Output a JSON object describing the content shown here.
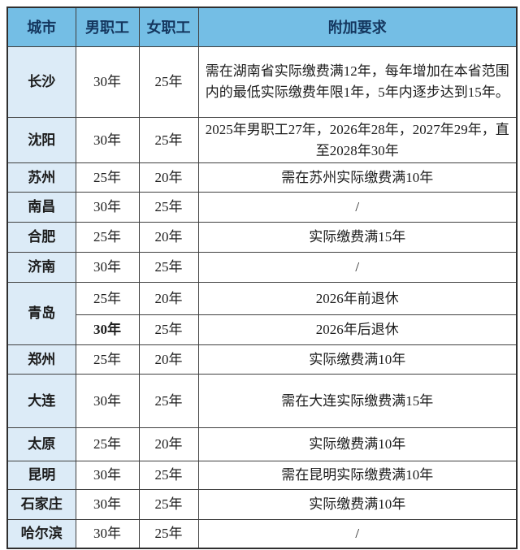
{
  "table": {
    "headers": {
      "city": "城市",
      "male": "男职工",
      "female": "女职工",
      "extra": "附加要求"
    },
    "rows": [
      {
        "city": "长沙",
        "male": "30年",
        "female": "25年",
        "extra": "需在湖南省实际缴费满12年，每年增加在本省范围内的最低实际缴费年限1年，5年内逐步达到15年。"
      },
      {
        "city": "沈阳",
        "male": "30年",
        "female": "25年",
        "extra": "2025年男职工27年，2026年28年，2027年29年，直至2028年30年"
      },
      {
        "city": "苏州",
        "male": "25年",
        "female": "20年",
        "extra": "需在苏州实际缴费满10年"
      },
      {
        "city": "南昌",
        "male": "30年",
        "female": "25年",
        "extra": "/"
      },
      {
        "city": "合肥",
        "male": "25年",
        "female": "20年",
        "extra": "实际缴费满15年"
      },
      {
        "city": "济南",
        "male": "30年",
        "female": "25年",
        "extra": "/"
      },
      {
        "city": "青岛",
        "male": "25年",
        "female": "20年",
        "extra": "2026年前退休"
      },
      {
        "city": "青岛",
        "male": "30年",
        "female": "25年",
        "extra": "2026年后退休"
      },
      {
        "city": "郑州",
        "male": "25年",
        "female": "20年",
        "extra": "实际缴费满10年"
      },
      {
        "city": "大连",
        "male": "30年",
        "female": "25年",
        "extra": "需在大连实际缴费满15年"
      },
      {
        "city": "太原",
        "male": "25年",
        "female": "20年",
        "extra": "实际缴费满10年"
      },
      {
        "city": "昆明",
        "male": "30年",
        "female": "25年",
        "extra": "需在昆明实际缴费满10年"
      },
      {
        "city": "石家庄",
        "male": "30年",
        "female": "25年",
        "extra": "实际缴费满10年"
      },
      {
        "city": "哈尔滨",
        "male": "30年",
        "female": "25年",
        "extra": "/"
      }
    ]
  },
  "colors": {
    "header_bg": "#74BEE5",
    "header_text": "#14365E",
    "city_column_bg": "#DCEBF7",
    "body_text": "#1c1c1c",
    "border": "#404040"
  }
}
